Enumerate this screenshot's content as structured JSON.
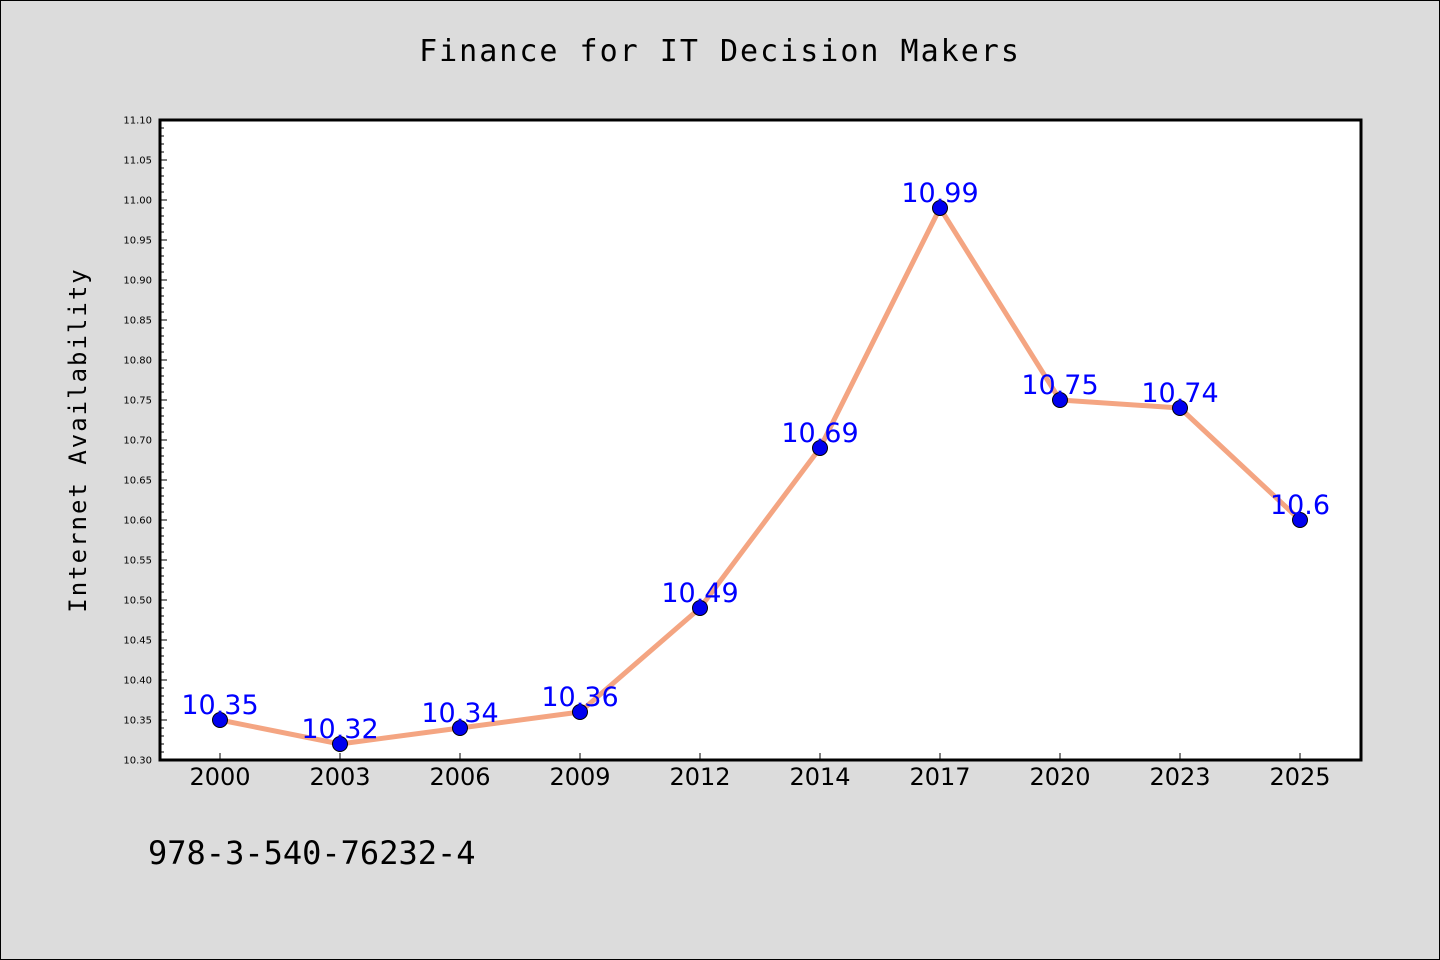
{
  "chart_title": "Finance for IT Decision Makers",
  "footer_code": "978-3-540-76232-4",
  "colors": {
    "background": "#dcdcdc",
    "plot_background": "#ffffff",
    "line": "#f4a582",
    "marker": "#0000ee",
    "data_label": "#0000ff"
  },
  "chart_data": {
    "type": "line",
    "title": "Finance for IT Decision Makers",
    "xlabel": "",
    "ylabel": "Internet Availability",
    "categories": [
      "2000",
      "2003",
      "2006",
      "2009",
      "2012",
      "2014",
      "2017",
      "2020",
      "2023",
      "2025"
    ],
    "series": [
      {
        "values": [
          10.35,
          10.32,
          10.34,
          10.36,
          10.49,
          10.69,
          10.99,
          10.75,
          10.74,
          10.6
        ],
        "labels": [
          "10.35",
          "10.32",
          "10.34",
          "10.36",
          "10.49",
          "10.69",
          "10.99",
          "10.75",
          "10.74",
          "10.6"
        ]
      }
    ],
    "ylim": [
      10.3,
      11.1
    ],
    "yticks": [
      "10.30",
      "10.35",
      "10.40",
      "10.45",
      "10.50",
      "10.55",
      "10.60",
      "10.65",
      "10.70",
      "10.75",
      "10.80",
      "10.85",
      "10.90",
      "10.95",
      "11.00",
      "11.05",
      "11.10"
    ],
    "grid": false,
    "legend": "none"
  }
}
